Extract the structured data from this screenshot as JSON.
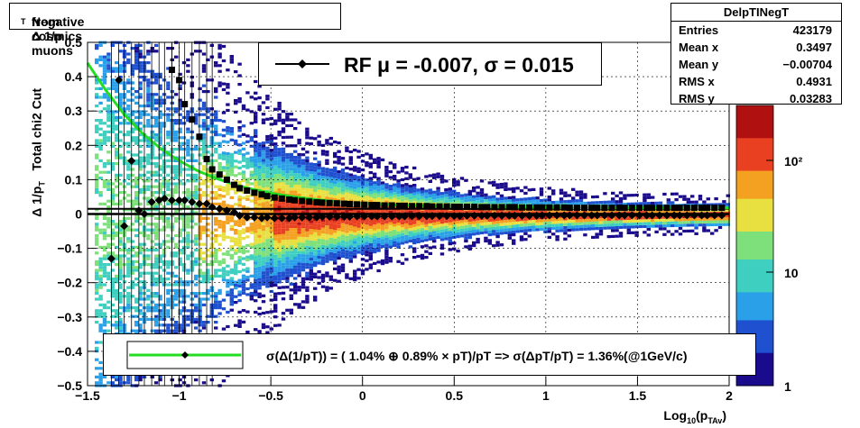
{
  "title": "Negative Δ 1/p",
  "title_sub": "T",
  "title_suffix": " from cosmics muons",
  "stats": {
    "name": "DelpTINegT",
    "rows": [
      {
        "key": "Entries",
        "value": "423179"
      },
      {
        "key": "Mean x",
        "value": "0.3497"
      },
      {
        "key": "Mean y",
        "value": "−0.00704"
      },
      {
        "key": "RMS x",
        "value": "0.4931"
      },
      {
        "key": "RMS y",
        "value": "0.03283"
      }
    ]
  },
  "legend_top": "RF μ = -0.007, σ =   0.015",
  "legend_bottom": "σ(Δ(1/pT)) = ( 1.04% ⊕  0.89% × pT)/pT => σ(ΔpT/pT) =  1.36%(@1GeV/c)",
  "colors": {
    "fit_line": "#22dd22",
    "mean_marker": "#000000",
    "sigma_marker": "#000000",
    "palette": [
      "#1a0a8c",
      "#1f50d0",
      "#2aa0e8",
      "#3ecfc0",
      "#7ee07a",
      "#e8e040",
      "#f4a020",
      "#e84020",
      "#b01010"
    ]
  },
  "chart_data": {
    "type": "heatmap",
    "title": "Negative Δ 1/pT from cosmics muons",
    "xlabel": "Log10(pTAv)",
    "ylabel": "Δ 1/pT   Total chi2 Cut",
    "xlim": [
      -1.5,
      2
    ],
    "ylim": [
      -0.5,
      0.5
    ],
    "xticks": [
      -1.5,
      -1,
      -0.5,
      0,
      0.5,
      1,
      1.5,
      2
    ],
    "xtick_labels": [
      "−1.5",
      "−1",
      "−0.5",
      "0",
      "0.5",
      "1",
      "1.5",
      "2"
    ],
    "yticks": [
      -0.5,
      -0.4,
      -0.3,
      -0.2,
      -0.1,
      0,
      0.1,
      0.2,
      0.3,
      0.4,
      0.5
    ],
    "ytick_labels": [
      "−0.5",
      "−0.4",
      "−0.3",
      "−0.2",
      "−0.1",
      "0",
      "0.1",
      "0.2",
      "0.3",
      "0.4",
      "0.5"
    ],
    "zscale": "log",
    "ztick_labels": [
      "1",
      "10",
      "10²"
    ],
    "grid": true,
    "mean_points": {
      "x": [
        -1.37,
        -1.33,
        -1.3,
        -1.26,
        -1.22,
        -1.19,
        -1.15,
        -1.11,
        -1.08,
        -1.04,
        -1.0,
        -0.97,
        -0.93,
        -0.89,
        -0.85,
        -0.82,
        -0.78,
        -0.74,
        -0.7,
        -0.67,
        -0.63,
        -0.59,
        -0.55,
        -0.52,
        -0.48,
        -0.44,
        -0.4,
        -0.37,
        -0.33,
        -0.29,
        -0.25,
        -0.22,
        -0.18,
        -0.14,
        -0.1,
        -0.07,
        -0.03,
        0.01,
        0.05,
        0.08,
        0.12,
        0.16,
        0.2,
        0.23,
        0.27,
        0.31,
        0.35,
        0.38,
        0.42,
        0.46,
        0.5,
        0.53,
        0.57,
        0.61,
        0.65,
        0.68,
        0.72,
        0.76,
        0.8,
        0.83,
        0.87,
        0.91,
        0.95,
        0.98,
        1.02,
        1.06,
        1.1,
        1.13,
        1.17,
        1.21,
        1.25,
        1.28,
        1.32,
        1.36,
        1.4,
        1.43,
        1.47,
        1.51,
        1.55,
        1.58,
        1.62,
        1.66,
        1.7,
        1.73,
        1.77,
        1.81,
        1.85,
        1.88,
        1.92,
        1.96
      ],
      "y": [
        -0.13,
        0.39,
        -0.035,
        0.155,
        0.01,
        0.0,
        0.035,
        0.04,
        0.045,
        0.04,
        0.04,
        0.04,
        0.035,
        0.03,
        0.03,
        0.02,
        0.015,
        0.01,
        0.005,
        -0.005,
        -0.01,
        -0.01,
        -0.012,
        -0.01,
        -0.012,
        -0.012,
        -0.012,
        -0.01,
        -0.01,
        -0.01,
        -0.01,
        -0.008,
        -0.008,
        -0.008,
        -0.008,
        -0.008,
        -0.007,
        -0.007,
        -0.007,
        -0.007,
        -0.007,
        -0.007,
        -0.007,
        -0.007,
        -0.006,
        -0.006,
        -0.006,
        -0.006,
        -0.006,
        -0.006,
        -0.006,
        -0.006,
        -0.005,
        -0.005,
        -0.005,
        -0.005,
        -0.005,
        -0.005,
        -0.005,
        -0.005,
        -0.005,
        -0.005,
        -0.005,
        -0.004,
        -0.004,
        -0.004,
        -0.004,
        -0.004,
        -0.004,
        -0.004,
        -0.004,
        -0.004,
        -0.004,
        -0.004,
        -0.004,
        -0.004,
        -0.004,
        -0.004,
        -0.004,
        -0.004,
        -0.004,
        -0.004,
        -0.004,
        -0.004,
        -0.004,
        -0.004,
        -0.004,
        -0.004,
        -0.004,
        -0.004
      ]
    },
    "sigma_points": {
      "x": [
        -1.04,
        -1.0,
        -0.97,
        -0.93,
        -0.89,
        -0.85,
        -0.82,
        -0.78,
        -0.74,
        -0.7,
        -0.67,
        -0.63,
        -0.59,
        -0.55,
        -0.52,
        -0.48,
        -0.44,
        -0.4,
        -0.37,
        -0.33,
        -0.29,
        -0.25,
        -0.22,
        -0.18,
        -0.14,
        -0.1,
        -0.07,
        -0.03,
        0.01,
        0.05,
        0.08,
        0.12,
        0.16,
        0.2,
        0.23,
        0.27,
        0.31,
        0.35,
        0.38,
        0.42,
        0.46,
        0.5,
        0.53,
        0.57,
        0.61,
        0.65,
        0.68,
        0.72,
        0.76,
        0.8,
        0.83,
        0.87,
        0.91,
        0.95,
        0.98,
        1.02,
        1.06,
        1.1,
        1.13,
        1.17,
        1.21,
        1.25,
        1.28,
        1.32,
        1.36,
        1.4,
        1.43,
        1.47,
        1.51,
        1.55,
        1.58,
        1.62,
        1.66,
        1.7,
        1.73,
        1.77,
        1.81,
        1.85,
        1.88,
        1.92,
        1.96
      ],
      "y": [
        0.42,
        0.39,
        0.32,
        0.275,
        0.225,
        0.16,
        0.13,
        0.115,
        0.1,
        0.085,
        0.075,
        0.068,
        0.062,
        0.057,
        0.052,
        0.048,
        0.045,
        0.042,
        0.04,
        0.038,
        0.036,
        0.034,
        0.033,
        0.032,
        0.031,
        0.03,
        0.029,
        0.028,
        0.027,
        0.026,
        0.026,
        0.025,
        0.025,
        0.024,
        0.024,
        0.023,
        0.023,
        0.023,
        0.022,
        0.022,
        0.022,
        0.021,
        0.021,
        0.021,
        0.021,
        0.02,
        0.02,
        0.02,
        0.02,
        0.02,
        0.02,
        0.019,
        0.019,
        0.019,
        0.019,
        0.019,
        0.019,
        0.019,
        0.018,
        0.018,
        0.018,
        0.018,
        0.018,
        0.018,
        0.018,
        0.018,
        0.018,
        0.018,
        0.018,
        0.018,
        0.018,
        0.018,
        0.018,
        0.018,
        0.018,
        0.018,
        0.018,
        0.018,
        0.018,
        0.018,
        0.018
      ]
    },
    "fit_curve": {
      "x": [
        -1.5,
        -1.4,
        -1.3,
        -1.2,
        -1.1,
        -1.0,
        -0.9,
        -0.8,
        -0.7,
        -0.6,
        -0.5,
        -0.4,
        -0.3,
        -0.2,
        -0.1,
        0.0,
        0.2,
        0.4,
        0.6,
        0.8,
        1.0,
        1.2,
        1.4,
        1.6,
        1.8,
        2.0
      ],
      "y": [
        0.44,
        0.36,
        0.29,
        0.235,
        0.19,
        0.155,
        0.126,
        0.104,
        0.086,
        0.072,
        0.061,
        0.052,
        0.045,
        0.039,
        0.034,
        0.031,
        0.026,
        0.023,
        0.021,
        0.02,
        0.019,
        0.0185,
        0.018,
        0.0178,
        0.0176,
        0.0175
      ]
    },
    "zero_line_y": 0.0,
    "mean_line_y": 0.015
  }
}
